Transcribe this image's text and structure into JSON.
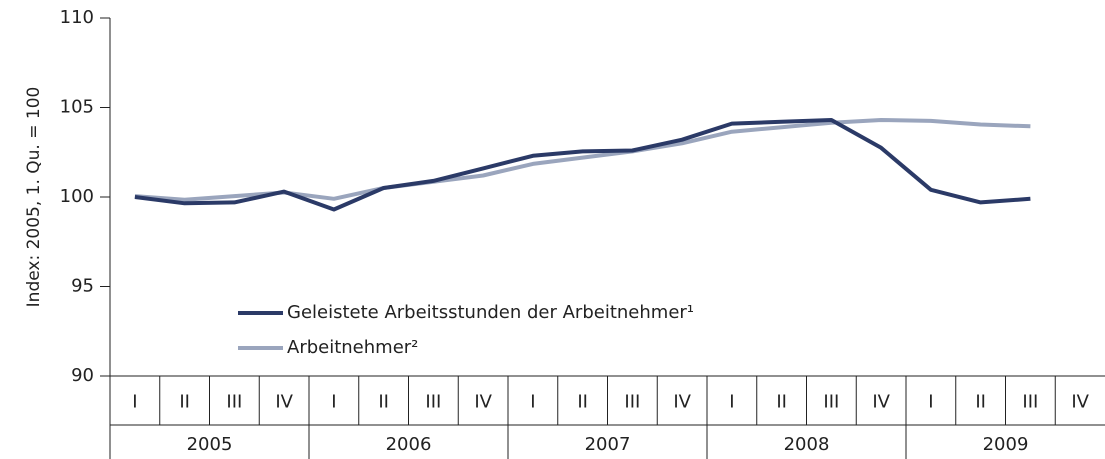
{
  "chart_data": {
    "type": "line",
    "ylabel": "Index: 2005, 1. Qu. = 100",
    "categories": [
      "I",
      "II",
      "III",
      "IV",
      "I",
      "II",
      "III",
      "IV",
      "I",
      "II",
      "III",
      "IV",
      "I",
      "II",
      "III",
      "IV",
      "I",
      "II",
      "III",
      "IV"
    ],
    "years": [
      "2005",
      "2006",
      "2007",
      "2008",
      "2009"
    ],
    "series": [
      {
        "name": "Geleistete Arbeitsstunden der Arbeitnehmer¹",
        "color": "#2b3a67",
        "values": [
          100,
          99.65,
          99.7,
          100.3,
          99.3,
          100.5,
          100.9,
          101.6,
          102.3,
          102.55,
          102.6,
          103.2,
          104.1,
          104.2,
          104.3,
          102.75,
          100.4,
          99.7,
          99.9,
          null
        ]
      },
      {
        "name": "Arbeitnehmer²",
        "color": "#9aa5bd",
        "values": [
          100.05,
          99.85,
          100.05,
          100.25,
          99.9,
          100.5,
          100.85,
          101.2,
          101.85,
          102.2,
          102.55,
          103.0,
          103.65,
          103.9,
          104.15,
          104.3,
          104.25,
          104.05,
          103.95,
          null
        ]
      }
    ],
    "ylim": [
      90,
      110
    ],
    "yticks": [
      90,
      95,
      100,
      105,
      110
    ],
    "grid": false
  }
}
